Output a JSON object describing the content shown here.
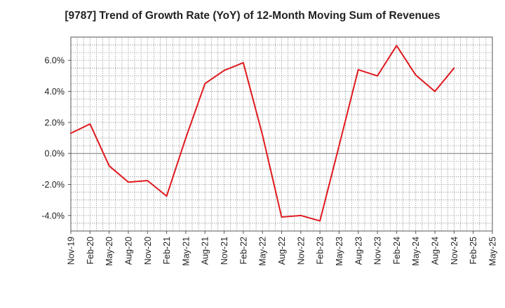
{
  "chart_data": {
    "type": "line",
    "title": "[9787]  Trend of Growth Rate (YoY) of 12-Month Moving Sum of Revenues",
    "xlabel": "",
    "ylabel": "",
    "categories": [
      "Nov-19",
      "Feb-20",
      "May-20",
      "Aug-20",
      "Nov-20",
      "Feb-21",
      "May-21",
      "Aug-21",
      "Nov-21",
      "Feb-22",
      "May-22",
      "Aug-22",
      "Nov-22",
      "Feb-23",
      "May-23",
      "Aug-23",
      "Nov-23",
      "Feb-24",
      "May-24",
      "Aug-24",
      "Nov-24",
      "Feb-25",
      "May-25"
    ],
    "x": [
      "Nov-19",
      "Dec-19",
      "Jan-20",
      "Feb-20",
      "Mar-20",
      "Apr-20",
      "May-20",
      "Jun-20",
      "Jul-20",
      "Aug-20",
      "Sep-20",
      "Oct-20",
      "Nov-20",
      "Dec-20",
      "Jan-21",
      "Feb-21",
      "Mar-21",
      "Apr-21",
      "May-21",
      "Jun-21",
      "Jul-21",
      "Aug-21",
      "Sep-21",
      "Oct-21",
      "Nov-21",
      "Dec-21",
      "Jan-22",
      "Feb-22",
      "Mar-22",
      "Apr-22",
      "May-22",
      "Jun-22",
      "Jul-22",
      "Aug-22",
      "Sep-22",
      "Oct-22",
      "Nov-22",
      "Dec-22",
      "Jan-23",
      "Feb-23",
      "Mar-23",
      "Apr-23",
      "May-23",
      "Jun-23",
      "Jul-23",
      "Aug-23",
      "Sep-23",
      "Oct-23",
      "Nov-23",
      "Dec-23",
      "Jan-24",
      "Feb-24",
      "Mar-24",
      "Apr-24",
      "May-24",
      "Jun-24",
      "Jul-24",
      "Aug-24",
      "Sep-24",
      "Oct-24",
      "Nov-24",
      "Dec-24",
      "Jan-25",
      "Feb-25",
      "Mar-25",
      "Apr-25",
      "May-25"
    ],
    "series": [
      {
        "name": "",
        "color": "#e0191e",
        "points": [
          {
            "x": "Nov-19",
            "y": 1.3
          },
          {
            "x": "Feb-20",
            "y": 1.9
          },
          {
            "x": "May-20",
            "y": -0.8
          },
          {
            "x": "Aug-20",
            "y": -1.85
          },
          {
            "x": "Nov-20",
            "y": -1.75
          },
          {
            "x": "Feb-21",
            "y": -2.75
          },
          {
            "x": "May-21",
            "y": 1.0
          },
          {
            "x": "Aug-21",
            "y": 4.5
          },
          {
            "x": "Nov-21",
            "y": 5.35
          },
          {
            "x": "Feb-22",
            "y": 5.85
          },
          {
            "x": "May-22",
            "y": 1.2
          },
          {
            "x": "Aug-22",
            "y": -4.1
          },
          {
            "x": "Nov-22",
            "y": -4.0
          },
          {
            "x": "Feb-23",
            "y": -4.35
          },
          {
            "x": "May-23",
            "y": 0.5
          },
          {
            "x": "Aug-23",
            "y": 5.4
          },
          {
            "x": "Nov-23",
            "y": 5.0
          },
          {
            "x": "Feb-24",
            "y": 6.95
          },
          {
            "x": "May-24",
            "y": 5.05
          },
          {
            "x": "Aug-24",
            "y": 4.0
          },
          {
            "x": "Nov-24",
            "y": 5.5
          }
        ]
      }
    ],
    "yticks": [
      -4,
      -2,
      0,
      2,
      4,
      6
    ],
    "ytick_labels": [
      "-4.0%",
      "-2.0%",
      "0.0%",
      "2.0%",
      "4.0%",
      "6.0%"
    ],
    "ylim": [
      -5,
      7.5
    ],
    "grid": true,
    "legend": "none"
  }
}
